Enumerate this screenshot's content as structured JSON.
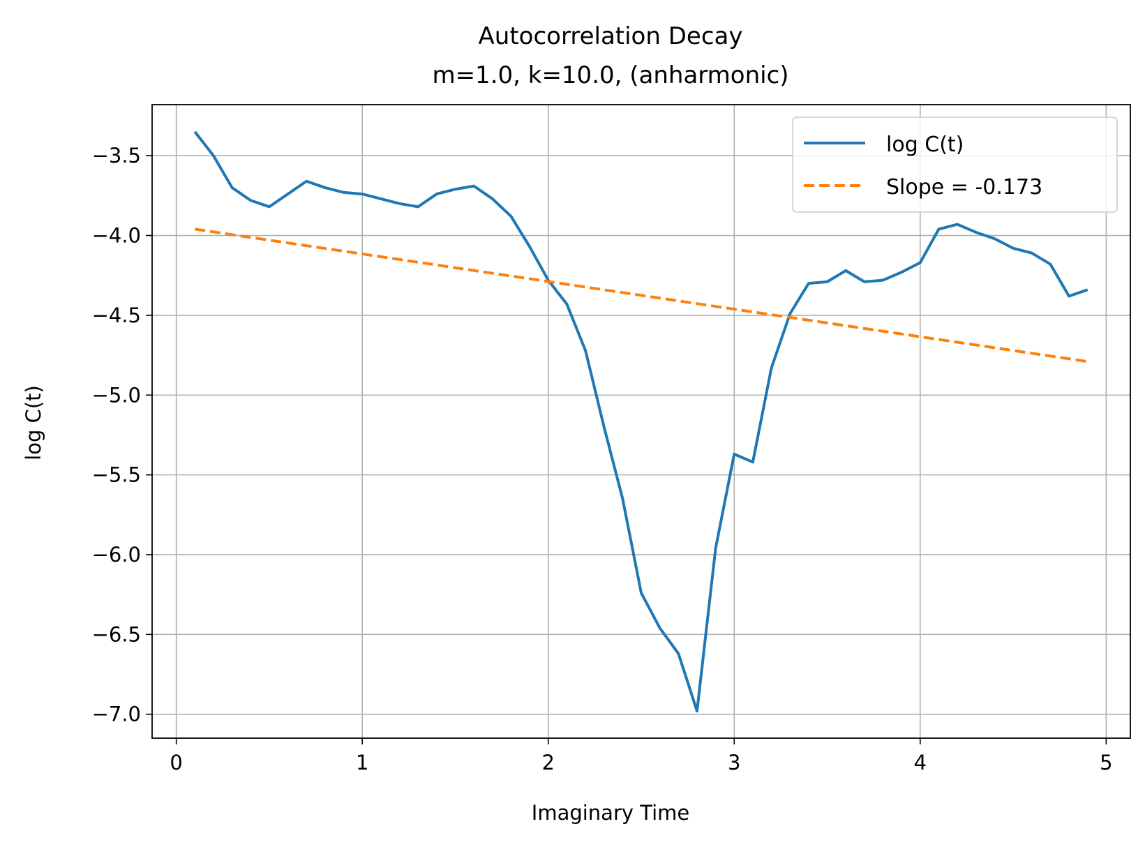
{
  "chart_data": {
    "type": "line",
    "title": "Autocorrelation Decay",
    "subtitle": "m=1.0, k=10.0, (anharmonic)",
    "xlabel": "Imaginary Time",
    "ylabel": "log C(t)",
    "xlim": [
      -0.13,
      5.13
    ],
    "ylim": [
      -7.15,
      -3.18
    ],
    "xticks": [
      0,
      1,
      2,
      3,
      4,
      5
    ],
    "xtick_labels": [
      "0",
      "1",
      "2",
      "3",
      "4",
      "5"
    ],
    "yticks": [
      -3.5,
      -4.0,
      -4.5,
      -5.0,
      -5.5,
      -6.0,
      -6.5,
      -7.0
    ],
    "ytick_labels": [
      "−3.5",
      "−4.0",
      "−4.5",
      "−5.0",
      "−5.5",
      "−6.0",
      "−6.5",
      "−7.0"
    ],
    "grid": true,
    "legend_position": "top-right",
    "series": [
      {
        "name": "log C(t)",
        "color": "#1f77b4",
        "style": "solid",
        "x": [
          0.1,
          0.2,
          0.3,
          0.4,
          0.5,
          0.6,
          0.7,
          0.8,
          0.9,
          1.0,
          1.1,
          1.2,
          1.3,
          1.4,
          1.5,
          1.6,
          1.7,
          1.8,
          1.9,
          2.0,
          2.1,
          2.2,
          2.3,
          2.4,
          2.5,
          2.6,
          2.7,
          2.8,
          2.9,
          3.0,
          3.1,
          3.2,
          3.3,
          3.4,
          3.5,
          3.6,
          3.7,
          3.8,
          3.9,
          4.0,
          4.1,
          4.2,
          4.3,
          4.4,
          4.5,
          4.6,
          4.7,
          4.8,
          4.9
        ],
        "y": [
          -3.35,
          -3.5,
          -3.7,
          -3.78,
          -3.82,
          -3.74,
          -3.66,
          -3.7,
          -3.73,
          -3.74,
          -3.77,
          -3.8,
          -3.82,
          -3.74,
          -3.71,
          -3.69,
          -3.77,
          -3.88,
          -4.07,
          -4.28,
          -4.43,
          -4.72,
          -5.2,
          -5.65,
          -6.24,
          -6.46,
          -6.62,
          -6.98,
          -5.96,
          -5.37,
          -5.42,
          -4.83,
          -4.49,
          -4.3,
          -4.29,
          -4.22,
          -4.29,
          -4.28,
          -4.23,
          -4.17,
          -3.96,
          -3.93,
          -3.98,
          -4.02,
          -4.08,
          -4.11,
          -4.18,
          -4.38,
          -4.34
        ]
      },
      {
        "name": "Slope = -0.173",
        "color": "#ff7f0e",
        "style": "dashed",
        "x": [
          0.1,
          4.9
        ],
        "y": [
          -3.96,
          -4.79
        ]
      }
    ]
  }
}
